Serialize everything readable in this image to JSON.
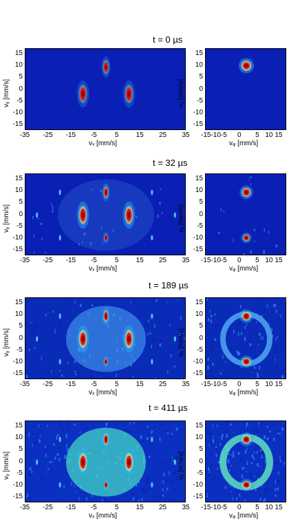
{
  "figure": {
    "panels": [
      {
        "time_label": "t =  0 µs"
      },
      {
        "time_label": "t = 32 µs"
      },
      {
        "time_label": "t = 189 µs"
      },
      {
        "time_label": "t = 411 µs"
      }
    ],
    "left_axes": {
      "xlabel": "vₓ [mm/s]",
      "ylabel": "vᵧ [mm/s]",
      "xticks": [
        "-35",
        "-25",
        "-15",
        "-5",
        "5",
        "15",
        "25",
        "35"
      ],
      "yticks": [
        "15",
        "10",
        "5",
        "0",
        "-5",
        "-10",
        "-15"
      ]
    },
    "right_axes": {
      "xlabel": "vᵩ [mm/s]",
      "ylabel": "vᵧ [mm/s]",
      "xticks_row1": [
        "-15-10-5",
        "0",
        "5",
        "10",
        "15"
      ],
      "xticks": [
        "-15-10-5",
        "0",
        "5",
        "10",
        "15"
      ],
      "yticks": [
        "15",
        "10",
        "5",
        "0",
        "-5",
        "-10",
        "-15"
      ]
    },
    "colors": {
      "background_low": "#0a1fb4",
      "mid": "#22b4ff",
      "high": "#e01010",
      "peak_core": "#8a0000"
    }
  }
}
